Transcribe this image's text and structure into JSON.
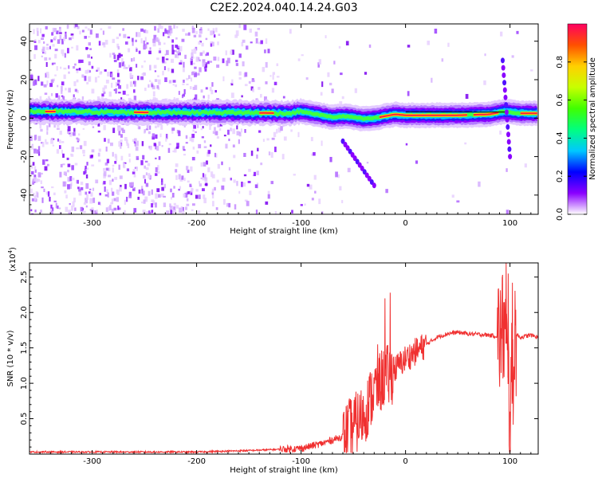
{
  "title": "C2E2.2024.040.14.24.G03",
  "chart_data": [
    {
      "type": "heatmap",
      "xlabel": "Height of straight line (km)",
      "ylabel": "Frequency (Hz)",
      "xlim": [
        -360,
        127
      ],
      "ylim": [
        -50,
        49
      ],
      "x_ticks": [
        -300,
        -200,
        -100,
        0,
        100
      ],
      "y_ticks": [
        -40,
        -20,
        0,
        20,
        40
      ],
      "x_tick_labels": [
        "-300",
        "-200",
        "-100",
        "0",
        "100"
      ],
      "y_tick_labels": [
        "-40",
        "-20",
        "0",
        "20",
        "40"
      ],
      "colorbar": {
        "label": "Normalized spectral amplitude",
        "range": [
          0.0,
          1.0
        ],
        "ticks": [
          0.0,
          0.2,
          0.4,
          0.6,
          0.8
        ],
        "tick_labels": [
          "0.0",
          "0.2",
          "0.4",
          "0.6",
          "0.8"
        ],
        "colors": [
          "#ffffff",
          "#8a00ff",
          "#0000ff",
          "#00c8ff",
          "#00ff80",
          "#40ff00",
          "#c8ff00",
          "#ffd000",
          "#ff5000",
          "#ff0060"
        ]
      },
      "ridge": {
        "x": [
          -360,
          -300,
          -250,
          -200,
          -150,
          -110,
          -100,
          -80,
          -70,
          -60,
          -50,
          -40,
          -30,
          -20,
          -10,
          0,
          20,
          50,
          80,
          95,
          110,
          127
        ],
        "y": [
          3.5,
          3.3,
          3.0,
          3.0,
          2.8,
          2.5,
          3.5,
          1.5,
          0.5,
          1.0,
          0.5,
          -0.5,
          0.0,
          1.0,
          2.0,
          1.5,
          1.5,
          1.5,
          2.0,
          3.5,
          2.5,
          2.5
        ]
      },
      "streaks": [
        {
          "x": [
            93,
            100
          ],
          "y": [
            30,
            -20
          ]
        },
        {
          "x": [
            -60,
            -30
          ],
          "y": [
            -12,
            -35
          ]
        }
      ],
      "grid": false
    },
    {
      "type": "line",
      "xlabel": "Height of straight line (km)",
      "ylabel": "SNR (10 * v/v)",
      "y_multiplier": "(x10",
      "y_multiplier_exp": "4",
      "y_multiplier_close": ")",
      "xlim": [
        -360,
        127
      ],
      "ylim": [
        0,
        2.7
      ],
      "x_ticks": [
        -300,
        -200,
        -100,
        0,
        100
      ],
      "y_ticks": [
        0.5,
        1.0,
        1.5,
        2.0,
        2.5
      ],
      "x_tick_labels": [
        "-300",
        "-200",
        "-100",
        "0",
        "100"
      ],
      "y_tick_labels": [
        "0.5",
        "1.0",
        "1.5",
        "2.0",
        "2.5"
      ],
      "series": [
        {
          "color": "#f03030",
          "x": [
            -360,
            -300,
            -250,
            -200,
            -150,
            -100,
            -80,
            -60,
            -50,
            -40,
            -30,
            -25,
            -20,
            -15,
            -10,
            0,
            10,
            20,
            30,
            40,
            50,
            60,
            80,
            90,
            95,
            100,
            105,
            110,
            120,
            127
          ],
          "y": [
            0.03,
            0.03,
            0.03,
            0.03,
            0.05,
            0.08,
            0.15,
            0.25,
            0.4,
            0.55,
            0.9,
            1.0,
            1.1,
            1.1,
            1.2,
            1.35,
            1.45,
            1.55,
            1.65,
            1.7,
            1.72,
            1.7,
            1.68,
            1.66,
            1.8,
            0.6,
            1.7,
            1.65,
            1.68,
            1.65
          ]
        }
      ],
      "spikes": [
        {
          "x": -15,
          "y": 2.28
        },
        {
          "x": -20,
          "y": 2.2
        },
        {
          "x": -27,
          "y": 1.55
        },
        {
          "x": 96,
          "y": 2.7
        },
        {
          "x": 98,
          "y": 2.55
        },
        {
          "x": 102,
          "y": 2.42
        },
        {
          "x": 100,
          "y": 0.05
        }
      ],
      "grid": false
    }
  ]
}
